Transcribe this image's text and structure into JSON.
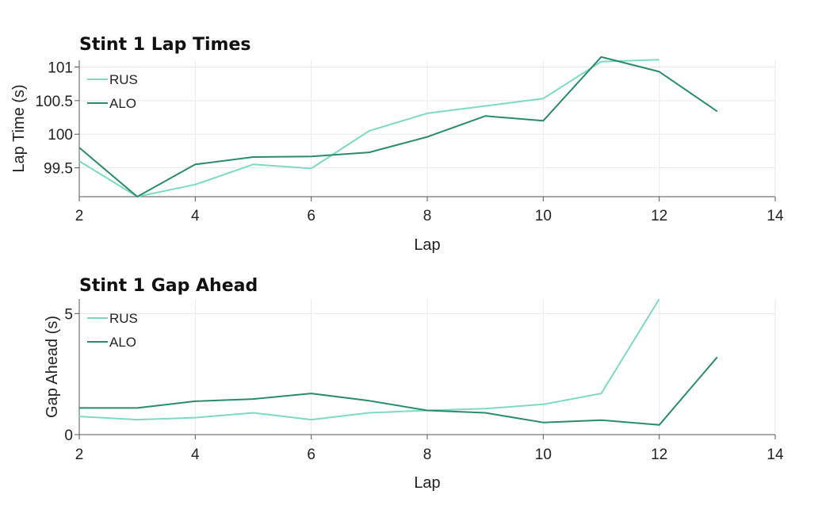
{
  "chart_data": [
    {
      "type": "line",
      "title": "Stint 1 Lap Times",
      "xlabel": "Lap",
      "ylabel": "Lap Time (s)",
      "xlim": [
        2,
        14
      ],
      "ylim": [
        99.07,
        101.1
      ],
      "xticks": [
        "2",
        "4",
        "6",
        "8",
        "10",
        "12",
        "14"
      ],
      "yticks": [
        "99.5",
        "100",
        "100.5",
        "101"
      ],
      "grid": true,
      "legend_position": "top-left",
      "series": [
        {
          "name": "RUS",
          "color": "#7dd9c4",
          "x": [
            2,
            3,
            4,
            5,
            6,
            7,
            8,
            9,
            10,
            11,
            12
          ],
          "y": [
            99.6,
            99.07,
            99.25,
            99.55,
            99.49,
            100.05,
            100.31,
            100.42,
            100.53,
            101.08,
            101.11
          ]
        },
        {
          "name": "ALO",
          "color": "#2a8a6c",
          "x": [
            2,
            3,
            4,
            5,
            6,
            7,
            8,
            9,
            10,
            11,
            12,
            13
          ],
          "y": [
            99.8,
            99.07,
            99.55,
            99.66,
            99.67,
            99.73,
            99.96,
            100.27,
            100.2,
            101.15,
            100.93,
            100.34
          ]
        }
      ]
    },
    {
      "type": "line",
      "title": "Stint 1 Gap Ahead",
      "xlabel": "Lap",
      "ylabel": "Gap Ahead (s)",
      "xlim": [
        2,
        14
      ],
      "ylim": [
        0,
        5.6
      ],
      "xticks": [
        "2",
        "4",
        "6",
        "8",
        "10",
        "12",
        "14"
      ],
      "yticks": [
        "0",
        "5"
      ],
      "grid": true,
      "legend_position": "top-left",
      "series": [
        {
          "name": "RUS",
          "color": "#7dd9c4",
          "x": [
            2,
            3,
            4,
            5,
            6,
            7,
            8,
            9,
            10,
            11,
            12
          ],
          "y": [
            0.75,
            0.62,
            0.7,
            0.9,
            0.62,
            0.9,
            1.0,
            1.07,
            1.25,
            1.7,
            5.6
          ]
        },
        {
          "name": "ALO",
          "color": "#2a8a6c",
          "x": [
            2,
            3,
            4,
            5,
            6,
            7,
            8,
            9,
            10,
            11,
            12,
            13
          ],
          "y": [
            1.1,
            1.1,
            1.38,
            1.47,
            1.7,
            1.4,
            1.0,
            0.9,
            0.5,
            0.6,
            0.4,
            3.2
          ]
        }
      ]
    }
  ]
}
